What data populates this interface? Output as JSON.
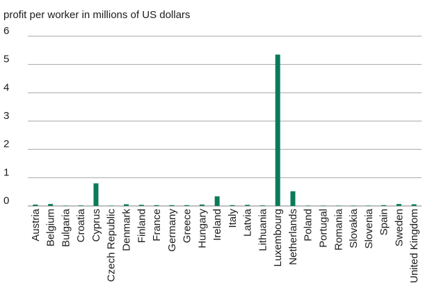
{
  "chart_data": {
    "type": "bar",
    "title": "",
    "xlabel": "",
    "ylabel": "profit per worker in millions of US dollars",
    "ylim": [
      0,
      6
    ],
    "yticks": [
      0,
      1,
      2,
      3,
      4,
      5,
      6
    ],
    "grid": true,
    "categories": [
      "Austria",
      "Belgium",
      "Bulgaria",
      "Croatia",
      "Cyprus",
      "Czech Republic",
      "Denmark",
      "Finland",
      "France",
      "Germany",
      "Greece",
      "Hungary",
      "Ireland",
      "Italy",
      "Latvia",
      "Lithuania",
      "Luxembourg",
      "Netherlands",
      "Poland",
      "Portugal",
      "Romania",
      "Slovakia",
      "Slovenia",
      "Spain",
      "Sweden",
      "United Kingdom"
    ],
    "values": [
      0.05,
      0.07,
      0.01,
      0.02,
      0.8,
      0.01,
      0.06,
      0.04,
      0.03,
      0.03,
      0.03,
      0.05,
      0.34,
      0.03,
      0.04,
      0.02,
      5.35,
      0.52,
      0.01,
      0.01,
      0.01,
      0.01,
      0.01,
      0.03,
      0.07,
      0.06
    ],
    "colors": {
      "bar": "#0a7a5a",
      "grid": "#a6a6a6",
      "axis": "#7f7f7f",
      "text": "#1a1a1a"
    }
  }
}
